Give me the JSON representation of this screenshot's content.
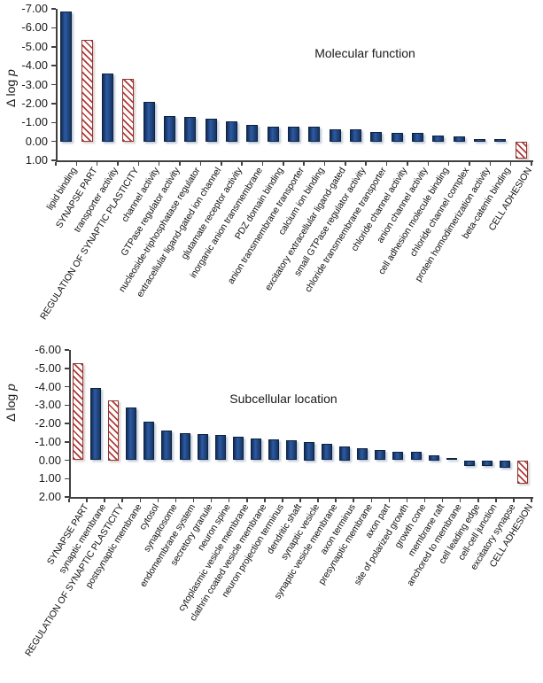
{
  "figure": {
    "background": "#ffffff"
  },
  "colors": {
    "solid_bar_dark": "#122c54",
    "solid_bar_light": "#2d5aa5",
    "hatch_stripe": "#b13a36",
    "hatch_border": "#8e3431",
    "axis": "#404040",
    "text": "#1a1a1a"
  },
  "chart_data": [
    {
      "type": "bar",
      "title": "Molecular function",
      "ylabel": "Δ log p",
      "ylabel_prefix": "Δ log ",
      "ylabel_italic": "p",
      "ylim": [
        -7,
        1
      ],
      "y_axis_note": "negative values upward, baseline at 0.00",
      "grid": false,
      "legend": "none",
      "ytick_labels": [
        "-7.00",
        "-6.00",
        "-5.00",
        "-4.00",
        "-3.00",
        "-2.00",
        "-1.00",
        "0.00",
        "1.00"
      ],
      "categories": [
        "lipid binding",
        "SYNAPSE PART",
        "transporter activity",
        "REGULATION OF SYNAPTIC PLASTICITY",
        "channel activity",
        "GTPase regulator activity",
        "nucleoside-triphosphatase regulator",
        "extracellular ligand-gated ion channel",
        "glutamate receptor activity",
        "inorganic anion transmembrane",
        "PDZ domain binding",
        "anion transmembrane transporter",
        "calcium ion binding",
        "excitatory extracellular ligand-gated",
        "small GTPase regulator activity",
        "chloride transmembrane transporter",
        "chloride channel activity",
        "anion channel activity",
        "cell adhesion molecule binding",
        "chloride channel complex",
        "protein homodimerization activity",
        "beta-catenin binding",
        "CELL ADHESION"
      ],
      "values": [
        -6.85,
        -5.35,
        -3.6,
        -3.3,
        -2.1,
        -1.35,
        -1.3,
        -1.2,
        -1.05,
        -0.85,
        -0.8,
        -0.8,
        -0.78,
        -0.65,
        -0.62,
        -0.5,
        -0.45,
        -0.45,
        -0.3,
        -0.25,
        -0.1,
        -0.12,
        0.9
      ],
      "bar_styles": [
        "solid",
        "hatched",
        "solid",
        "hatched",
        "solid",
        "solid",
        "solid",
        "solid",
        "solid",
        "solid",
        "solid",
        "solid",
        "solid",
        "solid",
        "solid",
        "solid",
        "solid",
        "solid",
        "solid",
        "solid",
        "solid",
        "solid",
        "hatched"
      ]
    },
    {
      "type": "bar",
      "title": "Subcellular location",
      "ylabel": "Δ log p",
      "ylabel_prefix": "Δ log ",
      "ylabel_italic": "p",
      "ylim": [
        -6,
        2
      ],
      "y_axis_note": "negative values upward, baseline at 0.00",
      "grid": false,
      "legend": "none",
      "ytick_labels": [
        "-6.00",
        "-5.00",
        "-4.00",
        "-3.00",
        "-2.00",
        "-1.00",
        "0.00",
        "1.00",
        "2.00"
      ],
      "categories": [
        "SYNAPSE PART",
        "synaptic membrane",
        "REGULATION OF SYNAPTIC PLASTICITY",
        "postsynaptic membrane",
        "cytosol",
        "synaptosome",
        "endomembrane system",
        "secretory granule",
        "neuron spine",
        "cytoplasmic vesicle membrane",
        "clathrin coated vesicle membrane",
        "neuron projection terminus",
        "dendritic shaft",
        "synaptic vesicle",
        "synaptic vesicle membrane",
        "axon terminus",
        "presynaptic membrane",
        "axon part",
        "site of polarized growth",
        "growth cone",
        "membrane raft",
        "anchored to membrane",
        "cell leading edge",
        "cell-cell junction",
        "excitatory synapse",
        "CELL ADHESION"
      ],
      "values": [
        -5.3,
        -3.95,
        -3.25,
        -2.85,
        -2.1,
        -1.6,
        -1.45,
        -1.4,
        -1.35,
        -1.3,
        -1.2,
        -1.15,
        -1.1,
        -1.0,
        -0.9,
        -0.75,
        -0.65,
        -0.55,
        -0.45,
        -0.45,
        -0.25,
        -0.1,
        0.3,
        0.3,
        0.4,
        1.3
      ],
      "bar_styles": [
        "hatched",
        "solid",
        "hatched",
        "solid",
        "solid",
        "solid",
        "solid",
        "solid",
        "solid",
        "solid",
        "solid",
        "solid",
        "solid",
        "solid",
        "solid",
        "solid",
        "solid",
        "solid",
        "solid",
        "solid",
        "solid",
        "solid",
        "solid",
        "solid",
        "solid",
        "hatched"
      ]
    }
  ]
}
